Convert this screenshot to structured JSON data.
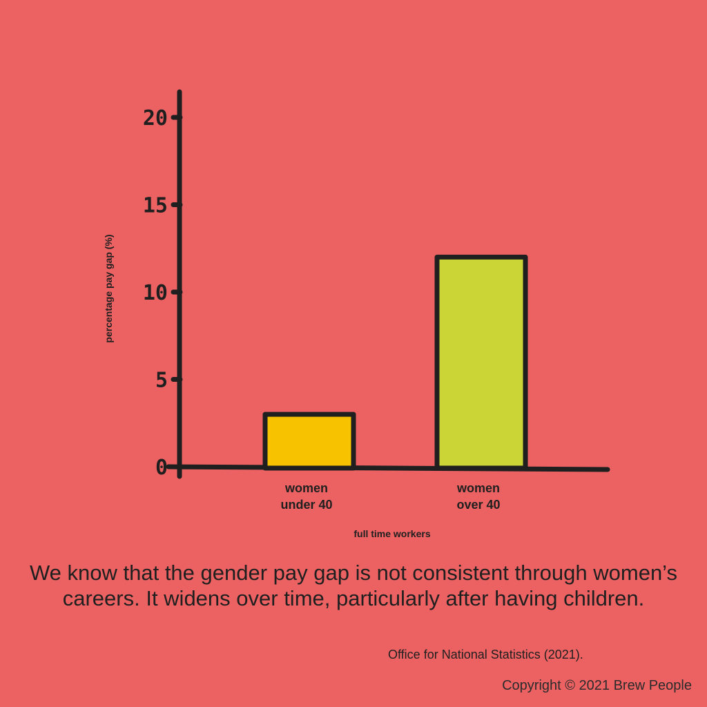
{
  "colors": {
    "background": "#ec6263",
    "axis": "#1f1f1f",
    "bar_under_40": "#f7c300",
    "bar_over_40": "#cbd636"
  },
  "chart_data": {
    "type": "bar",
    "categories": [
      [
        "women",
        "under 40"
      ],
      [
        "women",
        "over 40"
      ]
    ],
    "values": [
      3,
      12
    ],
    "bar_colors": [
      "#f7c300",
      "#cbd636"
    ],
    "xlabel": "full time workers",
    "ylabel": "percentage pay gap (%)",
    "ylim": [
      0,
      21
    ],
    "yticks": [
      0,
      5,
      10,
      15,
      20
    ],
    "grid": false
  },
  "caption": "We know that the gender pay gap is not consistent through women’s careers. It widens over time, particularly after having children.",
  "source": "Office for National Statistics (2021).",
  "copyright": "Copyright © 2021 Brew People"
}
